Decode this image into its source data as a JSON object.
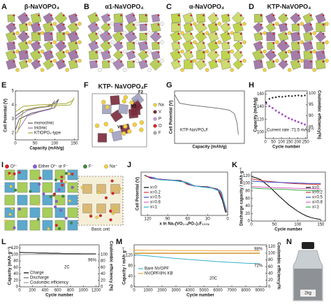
{
  "figure": {
    "panel_labels": [
      "A",
      "B",
      "C",
      "D",
      "E",
      "F",
      "G",
      "H",
      "I",
      "J",
      "K",
      "L",
      "M",
      "N"
    ],
    "structure_titles": [
      "β-NaVOPO₄",
      "α1-NaVOPO₄",
      "α-NaVOPO₄",
      "KTP-NaVOPO₄",
      "KTP- NaVOPO₄F"
    ],
    "F_site_labels": [
      "F2",
      "V2",
      "V1"
    ],
    "F_legend": [
      "Na",
      "V",
      "P",
      "O",
      "F"
    ],
    "I_legend": [
      "O²⁻",
      "Either O²⁻ or F⁻",
      "F⁻",
      "Na⁺"
    ],
    "I_caption": "Basic unit",
    "N_label": "2kg"
  },
  "chart_data": [
    {
      "type": "line",
      "xlabel": "Capacity (mAh/g)",
      "ylabel": "Cell Potential (V)",
      "xlim": [
        0,
        160
      ],
      "ylim": [
        1.5,
        5
      ],
      "xticks": [
        0,
        50,
        100,
        150
      ],
      "yticks": [
        2,
        3,
        4,
        5
      ],
      "series": [
        {
          "name": "monoclinic",
          "color": "#555555",
          "x": [
            0,
            20,
            50,
            80,
            100,
            110,
            100,
            70,
            40,
            10,
            0
          ],
          "values": [
            3.2,
            3.6,
            3.8,
            3.9,
            4.1,
            4.4,
            3.8,
            3.6,
            3.4,
            3.0,
            2.2
          ]
        },
        {
          "name": "triclinic",
          "color": "#9a6fb0",
          "x": [
            0,
            30,
            60,
            90,
            100,
            90,
            60,
            30,
            5
          ],
          "values": [
            3.0,
            3.6,
            3.8,
            3.9,
            4.3,
            3.7,
            3.5,
            3.2,
            2.1
          ]
        },
        {
          "name": "KTiOPO₄-type",
          "color": "#a3a82e",
          "x": [
            0,
            20,
            60,
            100,
            130,
            145,
            150,
            140,
            110,
            60,
            20,
            5
          ],
          "values": [
            3.5,
            3.9,
            4.0,
            4.05,
            4.1,
            4.3,
            4.5,
            4.0,
            3.95,
            3.85,
            3.6,
            2.0
          ]
        }
      ]
    },
    {
      "type": "line",
      "xlabel": "Capacity (mAh/g)",
      "ylabel": "Cell Potential (V)",
      "annotations": [
        "KTP-NaVPO₄F"
      ],
      "xlim": [
        0,
        140
      ],
      "ylim": [
        2,
        5
      ],
      "color": "#777777",
      "x": [
        0,
        10,
        30,
        60,
        90,
        110,
        120,
        125,
        128
      ],
      "values": [
        4.8,
        4.3,
        4.2,
        4.1,
        4.0,
        3.9,
        3.7,
        3.2,
        2.5
      ]
    },
    {
      "type": "scatter",
      "xlabel": "Cycle number",
      "ylabel": "Capacity (mAh/g)",
      "y2label": "Coulombic efficiency(%)",
      "annotations": [
        "Current rate :71.5 mA g⁻¹"
      ],
      "xlim": [
        0,
        260
      ],
      "ylim": [
        90,
        165
      ],
      "y2lim": [
        80,
        101
      ],
      "xticks": [
        0,
        50,
        100,
        150,
        200,
        250
      ],
      "yticks": [
        100,
        120,
        140,
        160
      ],
      "y2ticks": [
        85,
        90,
        95,
        100
      ],
      "series": [
        {
          "color": "#a04fc8",
          "marker": "square",
          "x": [
            5,
            25,
            45,
            65,
            85,
            105,
            125,
            145,
            165,
            185,
            205,
            225,
            245
          ],
          "values": [
            145,
            141,
            138,
            134,
            131,
            128,
            125,
            122,
            120,
            118,
            116,
            114,
            112
          ]
        },
        {
          "color": "#222222",
          "marker": "circle",
          "axis": "y2",
          "x": [
            5,
            25,
            45,
            65,
            85,
            105,
            125,
            145,
            165,
            185,
            205,
            225,
            245
          ],
          "values": [
            96,
            97.5,
            98,
            98.2,
            98.5,
            98.4,
            98.6,
            98.8,
            98.7,
            98.9,
            99,
            98.8,
            99
          ]
        }
      ]
    },
    {
      "type": "line",
      "xlabel": "x in Na₃(VO₁₋ₓPO₄)₂F₁₊₂ₓ",
      "ylabel": "Cell Potential (V)",
      "xlim": [
        130,
        0
      ],
      "ylim": [
        1.8,
        4.6
      ],
      "xticks": [
        120,
        90,
        60,
        30,
        0
      ],
      "series": [
        {
          "name": "x=0",
          "color": "#000000",
          "x": [
            125,
            115,
            90,
            70,
            60,
            50,
            30,
            15,
            8,
            3
          ],
          "values": [
            4.4,
            4.2,
            4.1,
            4.05,
            3.8,
            3.7,
            3.65,
            3.5,
            2.8,
            2.0
          ]
        },
        {
          "name": "x=0.2",
          "color": "#e0302a",
          "x": [
            122,
            112,
            88,
            68,
            58,
            48,
            28,
            13,
            6,
            2
          ],
          "values": [
            4.35,
            4.18,
            4.1,
            4.0,
            3.78,
            3.7,
            3.62,
            3.45,
            2.7,
            2.0
          ]
        },
        {
          "name": "x=0.5",
          "color": "#2f4fd8",
          "x": [
            118,
            108,
            85,
            65,
            55,
            45,
            26,
            11,
            5,
            1
          ],
          "values": [
            4.3,
            4.15,
            4.08,
            3.98,
            3.76,
            3.68,
            3.6,
            3.4,
            2.6,
            2.0
          ]
        },
        {
          "name": "x=0.8",
          "color": "#e060c0",
          "x": [
            115,
            105,
            82,
            62,
            52,
            42,
            24,
            10,
            4,
            1
          ],
          "values": [
            4.3,
            4.12,
            4.06,
            3.95,
            3.74,
            3.66,
            3.58,
            3.35,
            2.5,
            2.0
          ]
        },
        {
          "name": "x=1",
          "color": "#20b8c8",
          "x": [
            112,
            102,
            80,
            60,
            50,
            40,
            22,
            9,
            4,
            1
          ],
          "values": [
            4.28,
            4.1,
            4.05,
            3.92,
            3.72,
            3.64,
            3.55,
            3.3,
            2.4,
            2.0
          ]
        }
      ]
    },
    {
      "type": "line",
      "xlabel": "Cycle number",
      "ylabel": "Discharge capacity / mAh g⁻¹",
      "xlim": [
        0,
        160
      ],
      "ylim": [
        0,
        130
      ],
      "xticks": [
        0,
        50,
        100,
        150
      ],
      "yticks": [
        0,
        20,
        40,
        60,
        80,
        100,
        120
      ],
      "series": [
        {
          "name": "x=0",
          "color": "#000000",
          "x": [
            1,
            10,
            20,
            30,
            40,
            50,
            60,
            70,
            80,
            90,
            100,
            110,
            120,
            130,
            140,
            150
          ],
          "values": [
            118,
            115,
            110,
            100,
            90,
            78,
            66,
            55,
            44,
            35,
            26,
            19,
            13,
            9,
            6,
            4
          ]
        },
        {
          "name": "x=0.2",
          "color": "#e0302a",
          "x": [
            1,
            25,
            50,
            75,
            100,
            125,
            150
          ],
          "values": [
            112,
            107,
            104,
            101,
            99,
            98,
            97
          ]
        },
        {
          "name": "x=0.5",
          "color": "#2f4fd8",
          "x": [
            1,
            25,
            50,
            75,
            100,
            125,
            150
          ],
          "values": [
            106,
            104,
            103,
            102,
            101,
            100,
            100
          ]
        },
        {
          "name": "x=0.8",
          "color": "#e060c0",
          "x": [
            1,
            25,
            50,
            75,
            100,
            125,
            150
          ],
          "values": [
            92,
            90,
            89,
            88,
            87,
            86,
            85
          ]
        },
        {
          "name": "x=1",
          "color": "#3aa84a",
          "x": [
            1,
            25,
            50,
            75,
            100,
            125,
            150
          ],
          "values": [
            88,
            86,
            85,
            84,
            82,
            81,
            80
          ]
        }
      ]
    },
    {
      "type": "line",
      "xlabel": "Cycle number",
      "ylabel": "Capacity (mAh g⁻¹)",
      "y2label": "Coulombic efficiency (%)",
      "annotations": [
        "2C",
        "96%"
      ],
      "xlim": [
        0,
        1250
      ],
      "ylim": [
        0,
        130
      ],
      "y2lim": [
        0,
        130
      ],
      "xticks": [
        0,
        200,
        400,
        600,
        800,
        1000,
        1200
      ],
      "yticks": [
        0,
        20,
        40,
        60,
        80,
        100,
        120
      ],
      "y2ticks": [
        0,
        20,
        40,
        60,
        80,
        100
      ],
      "series": [
        {
          "name": "Charge",
          "color": "#000000",
          "x": [
            0,
            100,
            200,
            300,
            400,
            500,
            600,
            700,
            800,
            900,
            1000,
            1100,
            1200
          ],
          "values": [
            107,
            106,
            106,
            105,
            105,
            104,
            104,
            103,
            103,
            103,
            102,
            102,
            102
          ]
        },
        {
          "name": "Discharge",
          "color": "#666666",
          "x": [
            0,
            100,
            200,
            300,
            400,
            500,
            600,
            700,
            800,
            900,
            1000,
            1100,
            1200
          ],
          "values": [
            106,
            105,
            105,
            104,
            104,
            103,
            103,
            102,
            102,
            102,
            101,
            101,
            101
          ]
        },
        {
          "name": "Coulombic efficiency",
          "color": "#999999",
          "axis": "y2",
          "x": [
            0,
            100,
            200,
            300,
            400,
            500,
            600,
            700,
            800,
            900,
            1000,
            1100,
            1200
          ],
          "values": [
            99,
            100,
            100,
            100,
            100,
            100,
            100,
            100,
            100,
            100,
            100,
            100,
            100
          ]
        }
      ]
    },
    {
      "type": "line",
      "xlabel": "Cycle number",
      "ylabel": "Capacity / mAh g⁻¹",
      "y2label": "Coulombic efficiency/%",
      "annotations": [
        "20C",
        "98%",
        "72%"
      ],
      "xlim": [
        0,
        9500
      ],
      "ylim": [
        0,
        160
      ],
      "y2lim": [
        0,
        125
      ],
      "xticks": [
        0,
        1000,
        2000,
        3000,
        4000,
        5000,
        6000,
        7000,
        8000,
        9000
      ],
      "yticks": [
        0,
        40,
        80,
        120
      ],
      "y2ticks": [
        0,
        20,
        40,
        60,
        80,
        100,
        120
      ],
      "series": [
        {
          "name": "Bare NVOPF",
          "color": "#3ab0d0",
          "x": [
            0,
            1000,
            2000,
            3000,
            4000,
            5000,
            6000,
            7000,
            8000,
            9000
          ],
          "values": [
            122,
            118,
            113,
            108,
            104,
            100,
            96,
            93,
            90,
            88
          ],
          "ce": [
            100,
            100,
            100,
            100,
            100,
            100,
            100,
            100,
            100,
            100
          ]
        },
        {
          "name": "NVOPF/8% KB",
          "color": "#f0a030",
          "x": [
            0,
            1000,
            2000,
            3000,
            4000,
            5000,
            6000,
            7000,
            8000,
            9000
          ],
          "values": [
            140,
            139,
            139,
            138,
            138,
            138,
            137,
            137,
            137,
            137
          ],
          "ce": [
            99,
            100,
            100,
            100,
            100,
            100,
            100,
            100,
            100,
            100
          ]
        }
      ]
    }
  ]
}
